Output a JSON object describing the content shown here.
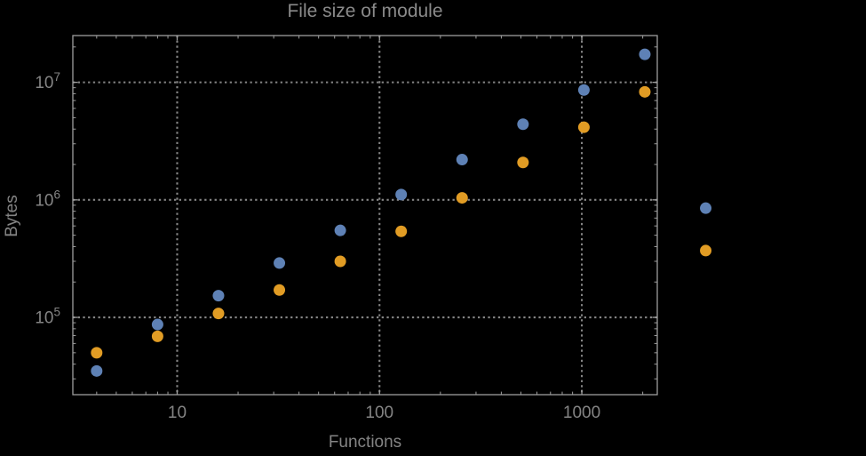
{
  "chart_data": {
    "type": "scatter",
    "title": "File size of module",
    "xlabel": "Functions",
    "ylabel": "Bytes",
    "x_scale": "log",
    "y_scale": "log",
    "xlim": [
      3.05,
      2360
    ],
    "ylim": [
      22000,
      25000000
    ],
    "grid": "dotted gridlines at major ticks",
    "legend_position": "none",
    "x": [
      4,
      8,
      16,
      32,
      64,
      128,
      256,
      512,
      1024,
      2048,
      4096
    ],
    "series": [
      {
        "color_name": "blue",
        "color": "#5E81B5",
        "values": [
          35000,
          87000,
          153000,
          290000,
          550000,
          1110000,
          2200000,
          4400000,
          8600000,
          17300000,
          850000
        ]
      },
      {
        "color_name": "orange",
        "color": "#E19C24",
        "values": [
          50000,
          69000,
          108000,
          171000,
          300000,
          540000,
          1040000,
          2080000,
          4150000,
          8300000,
          370000
        ]
      }
    ],
    "x_ticks": [
      {
        "label": "10",
        "value": 10
      },
      {
        "label": "100",
        "value": 100
      },
      {
        "label": "1000",
        "value": 1000
      }
    ],
    "y_ticks": [
      {
        "base": "10",
        "exp": "5",
        "value": 100000
      },
      {
        "base": "10",
        "exp": "6",
        "value": 1000000
      },
      {
        "base": "10",
        "exp": "7",
        "value": 10000000
      }
    ],
    "note": "points at x=4096 are drawn outside the right frame edge"
  },
  "colors": {
    "background": "#000000",
    "frame": "#9e9e9e",
    "gridline": "#858585",
    "tick_label": "#848484",
    "title_text": "#8a8a8a"
  }
}
